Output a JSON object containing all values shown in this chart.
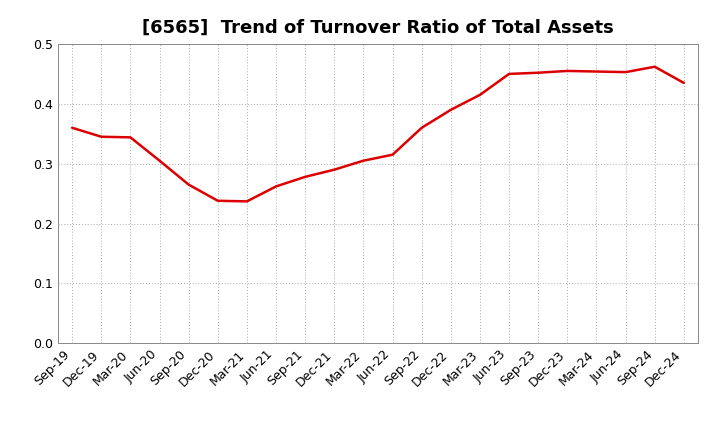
{
  "title": "[6565]  Trend of Turnover Ratio of Total Assets",
  "x_labels": [
    "Sep-19",
    "Dec-19",
    "Mar-20",
    "Jun-20",
    "Sep-20",
    "Dec-20",
    "Mar-21",
    "Jun-21",
    "Sep-21",
    "Dec-21",
    "Mar-22",
    "Jun-22",
    "Sep-22",
    "Dec-22",
    "Mar-23",
    "Jun-23",
    "Sep-23",
    "Dec-23",
    "Mar-24",
    "Jun-24",
    "Sep-24",
    "Dec-24"
  ],
  "y_values": [
    0.36,
    0.345,
    0.344,
    0.305,
    0.265,
    0.238,
    0.237,
    0.262,
    0.278,
    0.29,
    0.305,
    0.315,
    0.36,
    0.39,
    0.415,
    0.45,
    0.452,
    0.455,
    0.454,
    0.453,
    0.462,
    0.435
  ],
  "line_color": "#dd0000",
  "background_color": "#ffffff",
  "plot_bg_color": "#ffffff",
  "grid_color": "#aaaaaa",
  "ylim": [
    0.0,
    0.5
  ],
  "yticks": [
    0.0,
    0.1,
    0.2,
    0.3,
    0.4,
    0.5
  ],
  "title_fontsize": 13,
  "tick_fontsize": 9,
  "line_width": 1.8
}
